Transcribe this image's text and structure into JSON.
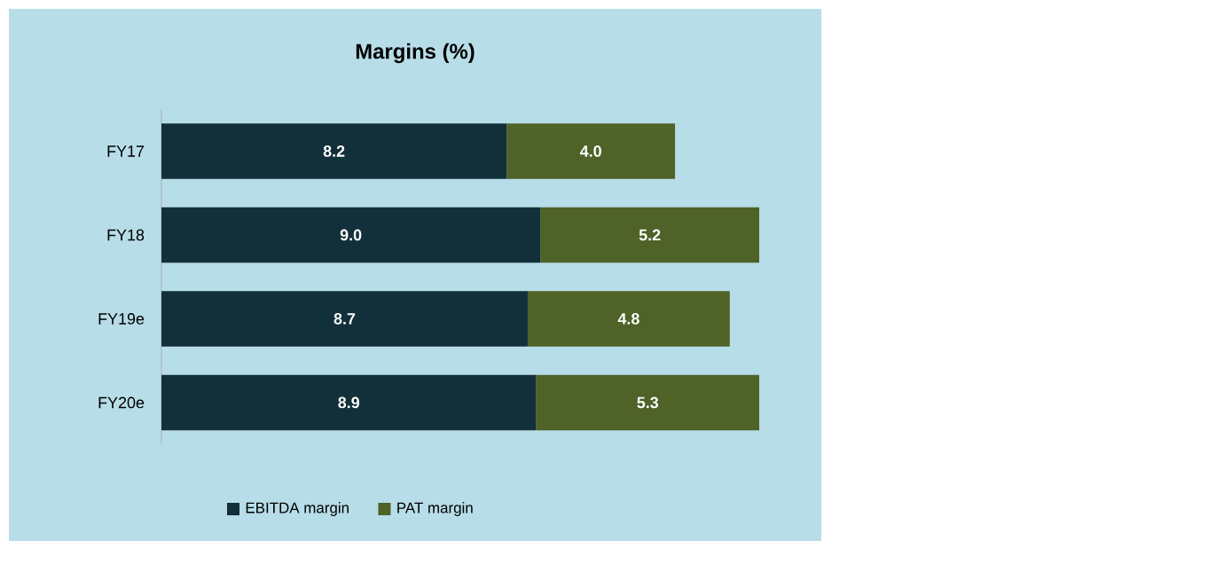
{
  "chart_data": {
    "type": "bar",
    "orientation": "horizontal",
    "stacked": true,
    "title": "Margins (%)",
    "categories": [
      "FY17",
      "FY18",
      "FY19e",
      "FY20e"
    ],
    "series": [
      {
        "name": "EBITDA margin",
        "color": "#12303a",
        "values": [
          8.2,
          9.0,
          8.7,
          8.9
        ],
        "value_labels": [
          "8.2",
          "9.0",
          "8.7",
          "8.9"
        ]
      },
      {
        "name": "PAT margin",
        "color": "#4f6228",
        "values": [
          4.0,
          5.2,
          4.8,
          5.3
        ],
        "value_labels": [
          "4.0",
          "5.2",
          "4.8",
          "5.3"
        ]
      }
    ],
    "legend": "bottom",
    "tick_labels": "y",
    "grid": false
  }
}
